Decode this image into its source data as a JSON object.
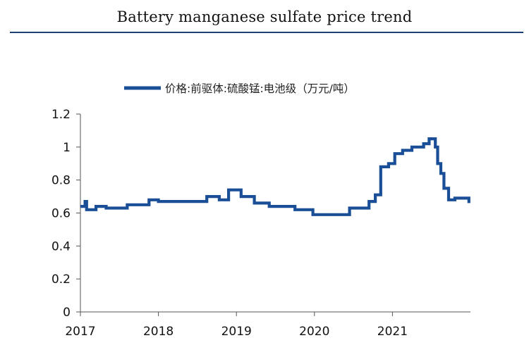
{
  "header": {
    "title": "Battery manganese sulfate price trend"
  },
  "chart_data": {
    "type": "line",
    "title": "Battery manganese sulfate price trend",
    "xlabel": "",
    "ylabel": "",
    "xlim": [
      2017,
      2022
    ],
    "ylim": [
      0,
      1.2
    ],
    "x_ticks": [
      2017,
      2018,
      2019,
      2020,
      2021
    ],
    "x_tick_labels": [
      "2017",
      "2018",
      "2019",
      "2020",
      "2021"
    ],
    "y_ticks": [
      0,
      0.2,
      0.4,
      0.6,
      0.8,
      1.0,
      1.2
    ],
    "y_tick_labels": [
      "0",
      "0.2",
      "0.4",
      "0.6",
      "0.8",
      "1",
      "1.2"
    ],
    "legend": {
      "position": "top",
      "entries": [
        "价格:前驱体:硫酸锰:电池级（万元/吨）"
      ]
    },
    "color": "#1a4e96",
    "series": [
      {
        "name": "价格:前驱体:硫酸锰:电池级（万元/吨）",
        "step": true,
        "x": [
          2017.0,
          2017.06,
          2017.08,
          2017.2,
          2017.33,
          2017.6,
          2017.88,
          2018.0,
          2018.5,
          2018.62,
          2018.78,
          2018.9,
          2019.06,
          2019.23,
          2019.42,
          2019.75,
          2019.98,
          2020.45,
          2020.5,
          2020.7,
          2020.78,
          2020.85,
          2020.95,
          2021.03,
          2021.13,
          2021.25,
          2021.4,
          2021.47,
          2021.52,
          2021.55,
          2021.58,
          2021.62,
          2021.66,
          2021.72,
          2021.8,
          2021.98
        ],
        "y": [
          0.64,
          0.67,
          0.62,
          0.64,
          0.63,
          0.65,
          0.68,
          0.67,
          0.67,
          0.7,
          0.68,
          0.74,
          0.7,
          0.66,
          0.64,
          0.62,
          0.59,
          0.63,
          0.63,
          0.67,
          0.71,
          0.88,
          0.9,
          0.96,
          0.98,
          1.0,
          1.02,
          1.05,
          1.05,
          1.0,
          0.9,
          0.84,
          0.75,
          0.68,
          0.69,
          0.66
        ]
      }
    ]
  }
}
